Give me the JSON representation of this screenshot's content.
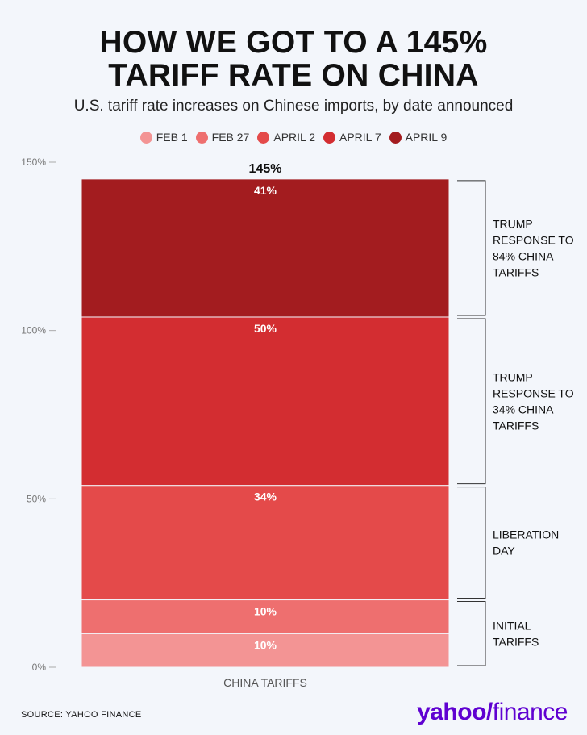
{
  "header": {
    "title_line1": "HOW WE GOT TO A 145%",
    "title_line2": "TARIFF RATE ON CHINA",
    "subtitle": "U.S. tariff rate increases on Chinese imports, by date announced"
  },
  "legend": [
    {
      "label": "FEB 1",
      "color": "#f39494"
    },
    {
      "label": "FEB 27",
      "color": "#ee6f6f"
    },
    {
      "label": "APRIL 2",
      "color": "#e44a4a"
    },
    {
      "label": "APRIL 7",
      "color": "#d32d31"
    },
    {
      "label": "APRIL 9",
      "color": "#a31c1f"
    }
  ],
  "chart_data": {
    "type": "bar",
    "stacked": true,
    "categories": [
      "CHINA TARIFFS"
    ],
    "series": [
      {
        "name": "FEB 1",
        "values": [
          10
        ],
        "label": "10%",
        "color": "#f39494"
      },
      {
        "name": "FEB 27",
        "values": [
          10
        ],
        "label": "10%",
        "color": "#ee6f6f"
      },
      {
        "name": "APRIL 2",
        "values": [
          34
        ],
        "label": "34%",
        "color": "#e44a4a"
      },
      {
        "name": "APRIL 7",
        "values": [
          50
        ],
        "label": "50%",
        "color": "#d32d31"
      },
      {
        "name": "APRIL 9",
        "values": [
          41
        ],
        "label": "41%",
        "color": "#a31c1f"
      }
    ],
    "total_label": "145%",
    "ylim": [
      0,
      150
    ],
    "yticks": [
      {
        "value": 0,
        "label": "0%"
      },
      {
        "value": 50,
        "label": "50%"
      },
      {
        "value": 100,
        "label": "100%"
      },
      {
        "value": 150,
        "label": "150%"
      }
    ],
    "annotations": [
      {
        "from": 0,
        "to": 20,
        "lines": [
          "INITIAL",
          "TARIFFS"
        ]
      },
      {
        "from": 20,
        "to": 54,
        "lines": [
          "LIBERATION",
          "DAY"
        ]
      },
      {
        "from": 54,
        "to": 104,
        "lines": [
          "TRUMP",
          "RESPONSE TO",
          "34% CHINA",
          "TARIFFS"
        ]
      },
      {
        "from": 104,
        "to": 145,
        "lines": [
          "TRUMP",
          "RESPONSE TO",
          "84% CHINA",
          "TARIFFS"
        ]
      }
    ]
  },
  "footer": {
    "source": "SOURCE:  YAHOO FINANCE",
    "brand_yahoo": "yahoo/",
    "brand_finance": "finance"
  }
}
